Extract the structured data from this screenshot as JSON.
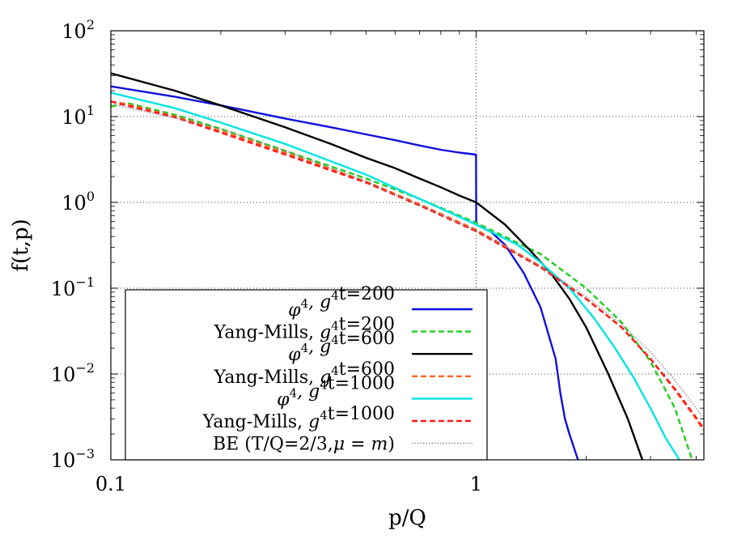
{
  "chart_data": {
    "type": "line",
    "xlabel": "p/Q",
    "ylabel": "f(t,p)",
    "x_scale": "log",
    "y_scale": "log",
    "xlim": [
      0.1,
      4.2
    ],
    "ylim": [
      0.001,
      100
    ],
    "x_ticks": [
      {
        "value": 0.1,
        "label": "0.1"
      },
      {
        "value": 1,
        "label": "1"
      }
    ],
    "y_ticks": [
      {
        "value": 0.001,
        "base": "10",
        "exp": "−3"
      },
      {
        "value": 0.01,
        "base": "10",
        "exp": "−2"
      },
      {
        "value": 0.1,
        "base": "10",
        "exp": "−1"
      },
      {
        "value": 1,
        "base": "10",
        "exp": "0"
      },
      {
        "value": 10,
        "base": "10",
        "exp": "1"
      },
      {
        "value": 100,
        "base": "10",
        "exp": "2"
      }
    ],
    "grid": true,
    "legend_position": "bottom-left",
    "series": [
      {
        "name": "φ4, g4t=200",
        "legend": {
          "pre": "φ",
          "sup1": "4",
          "mid": ", g",
          "sup2": "4",
          "post": "t=200"
        },
        "color": "#1010dd",
        "dash": "solid",
        "x": [
          0.1,
          0.15,
          0.2,
          0.3,
          0.4,
          0.5,
          0.6,
          0.7,
          0.8,
          0.9,
          0.999,
          1.0,
          1.001,
          1.1,
          1.2,
          1.35,
          1.5,
          1.65,
          1.7,
          1.75,
          1.8,
          1.9
        ],
        "y": [
          22.5,
          17,
          13.5,
          9.5,
          7.5,
          6.2,
          5.3,
          4.6,
          4.1,
          3.8,
          3.6,
          0.58,
          0.55,
          0.45,
          0.32,
          0.15,
          0.06,
          0.015,
          0.006,
          0.003,
          0.002,
          0.001
        ]
      },
      {
        "name": "Yang-Mills, g4t=200",
        "legend": {
          "pre": "Yang-Mills, ",
          "sup1": "",
          "mid": "g",
          "sup2": "4",
          "post": "t=200"
        },
        "color": "#22cc22",
        "dash": "dashed",
        "x": [
          0.1,
          0.11,
          0.15,
          0.2,
          0.3,
          0.5,
          0.7,
          1.0,
          1.5,
          2.0,
          2.5,
          3.0,
          3.5,
          3.9
        ],
        "y": [
          13,
          14.5,
          10.5,
          7.2,
          4,
          1.9,
          1.1,
          0.58,
          0.25,
          0.1,
          0.04,
          0.014,
          0.004,
          0.001
        ]
      },
      {
        "name": "φ4, g4t=600",
        "legend": {
          "pre": "φ",
          "sup1": "4",
          "mid": ", g",
          "sup2": "4",
          "post": "t=600"
        },
        "color": "#000000",
        "dash": "solid",
        "x": [
          0.1,
          0.15,
          0.2,
          0.3,
          0.4,
          0.5,
          0.6,
          0.7,
          0.8,
          0.9,
          1.0,
          1.2,
          1.4,
          1.6,
          1.8,
          2.0,
          2.3,
          2.6,
          2.85
        ],
        "y": [
          32,
          20,
          13.5,
          7.5,
          4.8,
          3.3,
          2.5,
          1.9,
          1.5,
          1.2,
          1.0,
          0.55,
          0.28,
          0.15,
          0.075,
          0.035,
          0.01,
          0.003,
          0.001
        ]
      },
      {
        "name": "Yang-Mills, g4t=600",
        "legend": {
          "pre": "Yang-Mills, ",
          "sup1": "",
          "mid": "g",
          "sup2": "4",
          "post": "t=600"
        },
        "color": "#ff6622",
        "dash": "dashed",
        "x": [
          0.1,
          0.11,
          0.15,
          0.2,
          0.3,
          0.5,
          0.7,
          1.0,
          1.5,
          2.0,
          2.5,
          3.0,
          3.5,
          4.0,
          4.2
        ],
        "y": [
          15,
          14,
          10,
          6.8,
          3.8,
          1.75,
          0.95,
          0.48,
          0.18,
          0.075,
          0.035,
          0.015,
          0.0065,
          0.003,
          0.0022
        ]
      },
      {
        "name": "φ4, g4t=1000",
        "legend": {
          "pre": "φ",
          "sup1": "4",
          "mid": ", g",
          "sup2": "4",
          "post": "t=1000"
        },
        "color": "#00e5e5",
        "dash": "solid",
        "x": [
          0.1,
          0.15,
          0.2,
          0.3,
          0.5,
          0.7,
          1.0,
          1.3,
          1.5,
          1.8,
          2.1,
          2.4,
          2.7,
          3.0,
          3.3,
          3.6
        ],
        "y": [
          19,
          12.5,
          8.5,
          4.8,
          2.1,
          1.1,
          0.55,
          0.32,
          0.2,
          0.1,
          0.045,
          0.02,
          0.009,
          0.004,
          0.0018,
          0.001
        ]
      },
      {
        "name": "Yang-Mills, g4t=1000",
        "legend": {
          "pre": "Yang-Mills, ",
          "sup1": "",
          "mid": "g",
          "sup2": "4",
          "post": "t=1000"
        },
        "color": "#ff1a1a",
        "dash": "dashed",
        "x": [
          0.1,
          0.11,
          0.15,
          0.2,
          0.3,
          0.5,
          0.7,
          1.0,
          1.5,
          2.0,
          2.5,
          3.0,
          3.5,
          4.0,
          4.2
        ],
        "y": [
          15,
          13.5,
          9.8,
          6.5,
          3.6,
          1.7,
          0.92,
          0.46,
          0.175,
          0.075,
          0.035,
          0.015,
          0.0067,
          0.0031,
          0.0023
        ]
      },
      {
        "name": "BE (T/Q=2/3,μ = m)",
        "legend": {
          "pre": "BE (T/Q=2/3,",
          "sup1": "",
          "mid": "μ = m",
          "sup2": "",
          "post": ")"
        },
        "color": "#888888",
        "dash": "dotted",
        "x": [
          0.1,
          0.15,
          0.2,
          0.3,
          0.5,
          0.7,
          1.0,
          1.5,
          2.0,
          2.5,
          3.0,
          3.5,
          4.0,
          4.2
        ],
        "y": [
          14,
          9.6,
          7.2,
          4.0,
          1.75,
          0.93,
          0.47,
          0.18,
          0.08,
          0.038,
          0.018,
          0.0085,
          0.004,
          0.003
        ]
      }
    ]
  }
}
